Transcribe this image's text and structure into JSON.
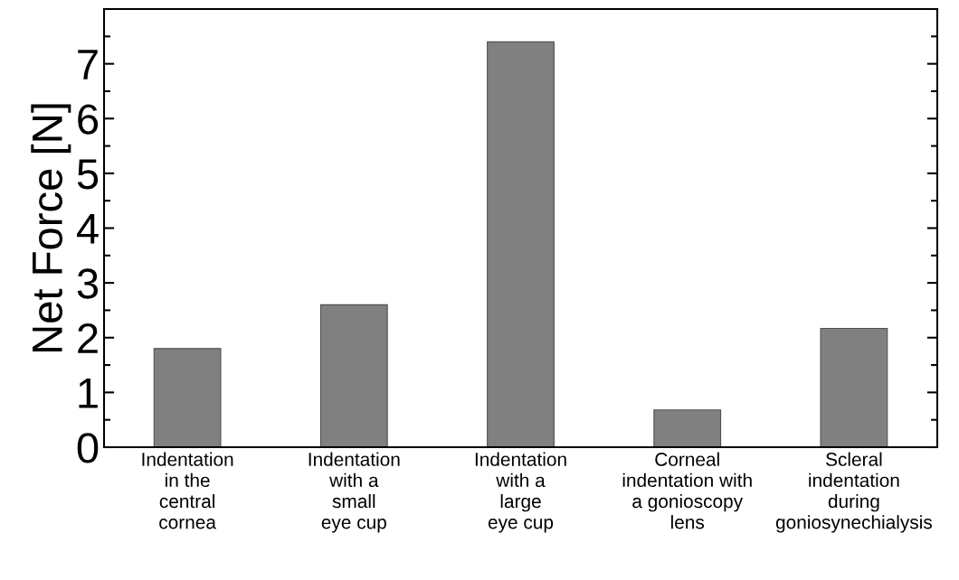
{
  "chart_data": {
    "type": "bar",
    "ylabel": "Net Force [N]",
    "categories": [
      "Indentation\nin the\ncentral\ncornea",
      "Indentation\nwith a\nsmall\neye cup",
      "Indentation\nwith a\nlarge\neye cup",
      "Corneal\nindentation with\na gonioscopy\nlens",
      "Scleral\nindentation\nduring\ngoniosynechialysis"
    ],
    "values": [
      1.8,
      2.6,
      7.4,
      0.68,
      2.17
    ],
    "color": "#808080",
    "ylim": [
      0,
      8
    ],
    "yticks": [
      0,
      1,
      2,
      3,
      4,
      5,
      6,
      7
    ],
    "grid": false,
    "legend": false
  }
}
